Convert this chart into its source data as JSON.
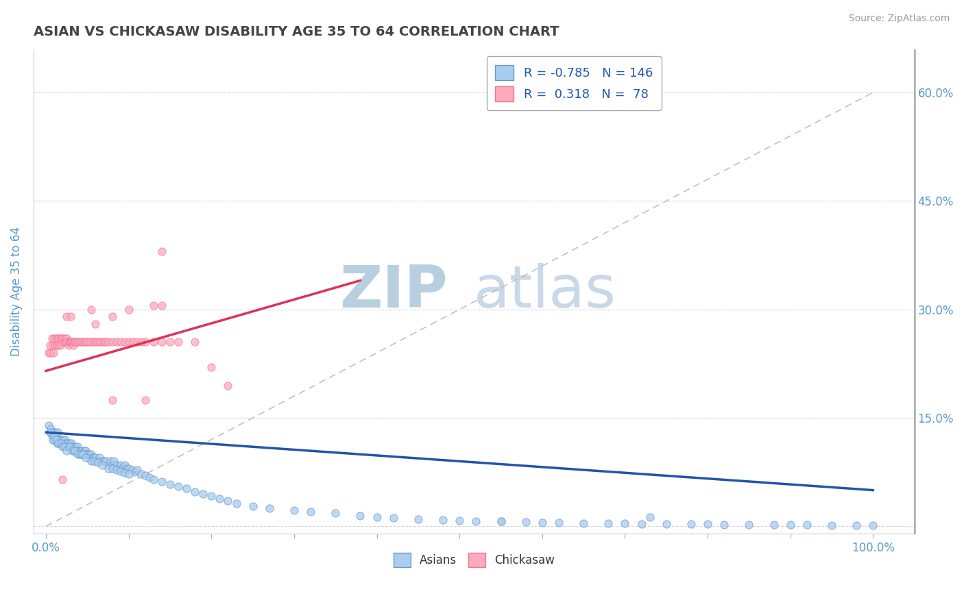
{
  "title": "ASIAN VS CHICKASAW DISABILITY AGE 35 TO 64 CORRELATION CHART",
  "source_text": "Source: ZipAtlas.com",
  "ylabel": "Disability Age 35 to 64",
  "x_ticks": [
    0.0,
    0.1,
    0.2,
    0.3,
    0.4,
    0.5,
    0.6,
    0.7,
    0.8,
    0.9,
    1.0
  ],
  "x_tick_labels": [
    "0.0%",
    "",
    "",
    "",
    "",
    "",
    "",
    "",
    "",
    "",
    "100.0%"
  ],
  "y_ticks": [
    0.0,
    0.15,
    0.3,
    0.45,
    0.6
  ],
  "y_tick_labels_right": [
    "",
    "15.0%",
    "30.0%",
    "45.0%",
    "60.0%"
  ],
  "xlim": [
    -0.015,
    1.05
  ],
  "ylim": [
    -0.01,
    0.66
  ],
  "title_color": "#444444",
  "title_fontsize": 14,
  "source_color": "#999999",
  "source_fontsize": 10,
  "axis_label_color": "#5599cc",
  "tick_label_color": "#5599cc",
  "grid_color": "#cccccc",
  "background_color": "#ffffff",
  "watermark_zip": "ZIP",
  "watermark_atlas": "atlas",
  "watermark_color": "#ccd8e8",
  "legend_R1": "-0.785",
  "legend_N1": "146",
  "legend_R2": " 0.318",
  "legend_N2": " 78",
  "asian_color": "#aaccee",
  "chickasaw_color": "#ffaabb",
  "asian_edge_color": "#6699cc",
  "chickasaw_edge_color": "#ee7799",
  "trend_asian_color": "#2255aa",
  "trend_chickasaw_color": "#dd3355",
  "ref_line_color": "#bbbbbb",
  "asian_trend_x0": 0.0,
  "asian_trend_x1": 1.0,
  "asian_trend_y0": 0.13,
  "asian_trend_y1": 0.05,
  "chickasaw_trend_x0": 0.0,
  "chickasaw_trend_x1": 0.38,
  "chickasaw_trend_y0": 0.215,
  "chickasaw_trend_y1": 0.34,
  "asian_x": [
    0.003,
    0.005,
    0.006,
    0.007,
    0.008,
    0.009,
    0.01,
    0.011,
    0.012,
    0.013,
    0.014,
    0.015,
    0.016,
    0.017,
    0.018,
    0.019,
    0.02,
    0.021,
    0.022,
    0.023,
    0.024,
    0.025,
    0.026,
    0.027,
    0.028,
    0.029,
    0.03,
    0.031,
    0.032,
    0.033,
    0.034,
    0.035,
    0.036,
    0.037,
    0.038,
    0.039,
    0.04,
    0.041,
    0.042,
    0.043,
    0.044,
    0.045,
    0.046,
    0.047,
    0.048,
    0.049,
    0.05,
    0.052,
    0.054,
    0.055,
    0.056,
    0.058,
    0.06,
    0.062,
    0.064,
    0.065,
    0.068,
    0.07,
    0.072,
    0.075,
    0.078,
    0.08,
    0.082,
    0.085,
    0.088,
    0.09,
    0.092,
    0.095,
    0.098,
    0.1,
    0.104,
    0.108,
    0.11,
    0.115,
    0.12,
    0.125,
    0.13,
    0.14,
    0.15,
    0.16,
    0.17,
    0.18,
    0.19,
    0.2,
    0.21,
    0.22,
    0.23,
    0.25,
    0.27,
    0.3,
    0.32,
    0.35,
    0.38,
    0.4,
    0.42,
    0.45,
    0.48,
    0.5,
    0.52,
    0.55,
    0.58,
    0.6,
    0.62,
    0.65,
    0.68,
    0.7,
    0.72,
    0.75,
    0.78,
    0.8,
    0.82,
    0.85,
    0.88,
    0.9,
    0.92,
    0.95,
    0.98,
    1.0,
    0.006,
    0.008,
    0.01,
    0.012,
    0.015,
    0.018,
    0.02,
    0.022,
    0.025,
    0.028,
    0.032,
    0.035,
    0.038,
    0.042,
    0.045,
    0.048,
    0.055,
    0.058,
    0.062,
    0.068,
    0.075,
    0.08,
    0.085,
    0.09,
    0.095,
    0.1,
    0.55,
    0.73
  ],
  "asian_y": [
    0.14,
    0.13,
    0.135,
    0.125,
    0.13,
    0.12,
    0.125,
    0.13,
    0.12,
    0.115,
    0.13,
    0.12,
    0.115,
    0.12,
    0.115,
    0.12,
    0.115,
    0.12,
    0.115,
    0.12,
    0.115,
    0.11,
    0.115,
    0.11,
    0.115,
    0.11,
    0.11,
    0.115,
    0.11,
    0.105,
    0.11,
    0.105,
    0.11,
    0.105,
    0.11,
    0.105,
    0.1,
    0.105,
    0.1,
    0.105,
    0.1,
    0.1,
    0.105,
    0.1,
    0.105,
    0.1,
    0.1,
    0.1,
    0.095,
    0.1,
    0.095,
    0.095,
    0.095,
    0.09,
    0.09,
    0.095,
    0.09,
    0.09,
    0.09,
    0.085,
    0.09,
    0.085,
    0.09,
    0.085,
    0.08,
    0.085,
    0.08,
    0.085,
    0.08,
    0.08,
    0.078,
    0.075,
    0.078,
    0.072,
    0.07,
    0.068,
    0.065,
    0.062,
    0.058,
    0.055,
    0.052,
    0.048,
    0.045,
    0.042,
    0.038,
    0.035,
    0.032,
    0.028,
    0.025,
    0.022,
    0.02,
    0.018,
    0.015,
    0.013,
    0.012,
    0.01,
    0.009,
    0.008,
    0.007,
    0.007,
    0.006,
    0.005,
    0.005,
    0.004,
    0.004,
    0.004,
    0.003,
    0.003,
    0.003,
    0.003,
    0.002,
    0.002,
    0.002,
    0.002,
    0.002,
    0.001,
    0.001,
    0.001,
    0.13,
    0.12,
    0.125,
    0.12,
    0.115,
    0.115,
    0.11,
    0.11,
    0.105,
    0.11,
    0.105,
    0.105,
    0.1,
    0.1,
    0.1,
    0.095,
    0.09,
    0.09,
    0.088,
    0.085,
    0.08,
    0.08,
    0.078,
    0.076,
    0.074,
    0.072,
    0.007,
    0.013
  ],
  "chickasaw_x": [
    0.003,
    0.005,
    0.006,
    0.007,
    0.008,
    0.009,
    0.01,
    0.011,
    0.012,
    0.013,
    0.014,
    0.015,
    0.016,
    0.017,
    0.018,
    0.019,
    0.02,
    0.021,
    0.022,
    0.023,
    0.024,
    0.025,
    0.026,
    0.027,
    0.028,
    0.029,
    0.03,
    0.031,
    0.032,
    0.033,
    0.034,
    0.035,
    0.036,
    0.038,
    0.04,
    0.042,
    0.044,
    0.046,
    0.048,
    0.05,
    0.052,
    0.055,
    0.058,
    0.06,
    0.062,
    0.065,
    0.068,
    0.07,
    0.072,
    0.075,
    0.08,
    0.085,
    0.09,
    0.095,
    0.1,
    0.105,
    0.11,
    0.115,
    0.12,
    0.13,
    0.14,
    0.15,
    0.16,
    0.18,
    0.2,
    0.22,
    0.025,
    0.03,
    0.055,
    0.06,
    0.08,
    0.1,
    0.13,
    0.14,
    0.08,
    0.12,
    0.02,
    0.14
  ],
  "chickasaw_y": [
    0.24,
    0.25,
    0.24,
    0.26,
    0.25,
    0.24,
    0.26,
    0.25,
    0.26,
    0.25,
    0.26,
    0.25,
    0.26,
    0.25,
    0.26,
    0.26,
    0.255,
    0.26,
    0.255,
    0.26,
    0.255,
    0.26,
    0.255,
    0.25,
    0.255,
    0.255,
    0.255,
    0.255,
    0.255,
    0.25,
    0.255,
    0.255,
    0.255,
    0.255,
    0.255,
    0.255,
    0.255,
    0.255,
    0.255,
    0.255,
    0.255,
    0.255,
    0.255,
    0.255,
    0.255,
    0.255,
    0.255,
    0.255,
    0.255,
    0.255,
    0.255,
    0.255,
    0.255,
    0.255,
    0.255,
    0.255,
    0.255,
    0.255,
    0.255,
    0.255,
    0.255,
    0.255,
    0.255,
    0.255,
    0.22,
    0.195,
    0.29,
    0.29,
    0.3,
    0.28,
    0.29,
    0.3,
    0.305,
    0.305,
    0.175,
    0.175,
    0.065,
    0.38
  ]
}
